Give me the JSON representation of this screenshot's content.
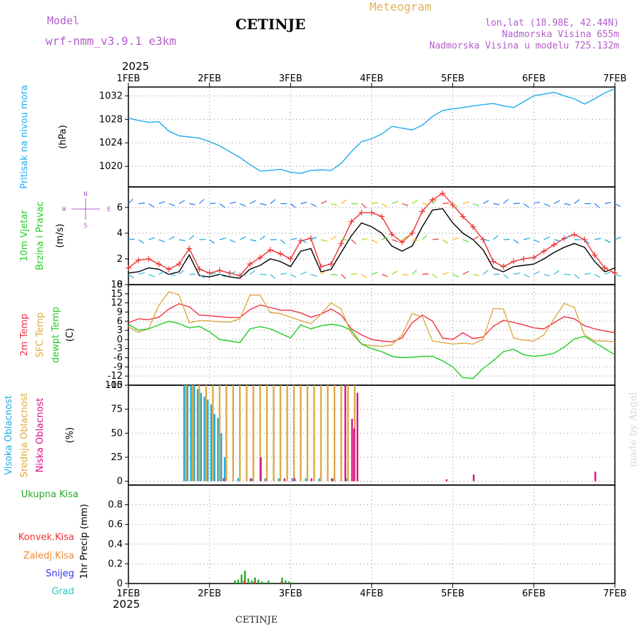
{
  "header": {
    "model_label": "Model",
    "model_name": "wrf-nmm_v3.9.1 e3km",
    "station": "CETINJE",
    "product": "Meteogram",
    "lonlat": "lon,lat (18.98E, 42.44N)",
    "altitude": "Nadmorska Visina 655m",
    "model_altitude": "Nadmorska Visina u modelu 725.132m",
    "footer_station": "CETINJE",
    "credit": "made by Angel",
    "year_top": "2025",
    "year_bottom": "2025"
  },
  "colors": {
    "pressure": "#22aaee",
    "wind_speed": "#000000",
    "gust": "#ee3333",
    "temp2m": "#ee3344",
    "sfc_temp": "#ddaa44",
    "dewpt": "#22cc22",
    "cloud_high": "#22aadd",
    "cloud_mid": "#ddaa44",
    "cloud_low": "#dd1188",
    "precip_total": "#22aa22",
    "precip_conv": "#ee3333",
    "precip_frozen": "#ee8833",
    "snow": "#3333ee",
    "graupel": "#22ccbb",
    "grid": "#888888"
  },
  "chart_data": {
    "type": "meteogram",
    "x_labels": [
      "1FEB",
      "2FEB",
      "3FEB",
      "4FEB",
      "5FEB",
      "6FEB",
      "7FEB"
    ],
    "x_range_hours": [
      0,
      144
    ],
    "panels": [
      {
        "id": "pressure",
        "type": "line",
        "ylabels": [
          "Pritisak na nivou mora",
          "(hPa)"
        ],
        "ylim": [
          1016.5,
          1033.5
        ],
        "yticks": [
          1020,
          1024,
          1028,
          1032
        ],
        "series": [
          {
            "name": "sea-level pressure",
            "color": "#22aaee",
            "x": [
              0,
              3,
              6,
              9,
              12,
              15,
              18,
              21,
              24,
              27,
              30,
              33,
              36,
              39,
              42,
              45,
              48,
              51,
              54,
              57,
              60,
              63,
              66,
              69,
              72,
              75,
              78,
              81,
              84,
              87,
              90,
              93,
              96,
              99,
              102,
              105,
              108,
              111,
              114,
              117,
              120,
              123,
              126,
              129,
              132,
              135,
              138,
              141,
              144
            ],
            "y": [
              1028.2,
              1027.8,
              1027.5,
              1027.6,
              1026,
              1025.2,
              1025,
              1024.8,
              1024.2,
              1023.5,
              1022.5,
              1021.5,
              1020.3,
              1019.2,
              1019.3,
              1019.5,
              1019,
              1018.8,
              1019.3,
              1019.4,
              1019.3,
              1020.5,
              1022.5,
              1024.2,
              1024.7,
              1025.5,
              1026.8,
              1026.5,
              1026.2,
              1027,
              1028.5,
              1029.5,
              1029.8,
              1030,
              1030.3,
              1030.5,
              1030.7,
              1030.3,
              1030,
              1031,
              1032,
              1032.3,
              1032.6,
              1032,
              1031.5,
              1030.6,
              1031.5,
              1032.5,
              1033.2
            ]
          }
        ]
      },
      {
        "id": "wind",
        "type": "line+barbs",
        "ylabels": [
          "10m Vjetar",
          "Brzina i Pravac",
          "(m/s)"
        ],
        "ylim": [
          0,
          7.6
        ],
        "yticks": [
          0,
          2,
          4,
          6
        ],
        "compass": {
          "north": "N",
          "south": "S",
          "west": "W",
          "east": "E"
        },
        "series": [
          {
            "name": "10m wind speed",
            "color": "#000000",
            "x": [
              0,
              3,
              6,
              9,
              12,
              15,
              18,
              21,
              24,
              27,
              30,
              33,
              36,
              39,
              42,
              45,
              48,
              51,
              54,
              57,
              60,
              63,
              66,
              69,
              72,
              75,
              78,
              81,
              84,
              87,
              90,
              93,
              96,
              99,
              102,
              105,
              108,
              111,
              114,
              117,
              120,
              123,
              126,
              129,
              132,
              135,
              138,
              141,
              144
            ],
            "y": [
              0.9,
              1.0,
              1.3,
              1.2,
              0.8,
              1.0,
              2.3,
              0.7,
              0.6,
              0.8,
              0.6,
              0.5,
              1.2,
              1.5,
              2.0,
              1.8,
              1.4,
              2.6,
              2.8,
              1.0,
              1.2,
              2.5,
              3.8,
              4.8,
              4.5,
              4.0,
              3.0,
              2.6,
              3.0,
              4.5,
              5.8,
              5.9,
              4.8,
              4.0,
              3.5,
              2.7,
              1.3,
              1.0,
              1.4,
              1.5,
              1.6,
              2.0,
              2.5,
              2.9,
              3.2,
              2.9,
              1.8,
              1.0,
              1.3
            ]
          },
          {
            "name": "gust",
            "color": "#ee3333",
            "x": [
              0,
              3,
              6,
              9,
              12,
              15,
              18,
              21,
              24,
              27,
              30,
              33,
              36,
              39,
              42,
              45,
              48,
              51,
              54,
              57,
              60,
              63,
              66,
              69,
              72,
              75,
              78,
              81,
              84,
              87,
              90,
              93,
              96,
              99,
              102,
              105,
              108,
              111,
              114,
              117,
              120,
              123,
              126,
              129,
              132,
              135,
              138,
              141,
              144
            ],
            "y": [
              1.3,
              1.9,
              2.0,
              1.6,
              1.2,
              1.6,
              2.8,
              1.2,
              0.9,
              1.1,
              0.9,
              0.7,
              1.6,
              2.1,
              2.7,
              2.4,
              2.0,
              3.4,
              3.6,
              1.4,
              1.6,
              3.2,
              4.9,
              5.6,
              5.6,
              5.3,
              3.9,
              3.3,
              4.0,
              5.7,
              6.6,
              7.1,
              6.2,
              5.3,
              4.5,
              3.5,
              1.8,
              1.4,
              1.8,
              2.0,
              2.1,
              2.6,
              3.1,
              3.6,
              3.9,
              3.5,
              2.3,
              1.3,
              0.9
            ]
          }
        ]
      },
      {
        "id": "temperature",
        "type": "line",
        "ylabels": [
          "2m Temp",
          "SFC Temp",
          "dewpt Temp",
          "(C)"
        ],
        "ylim": [
          -15,
          18
        ],
        "yticks": [
          -15,
          -12,
          -9,
          -6,
          -3,
          0,
          3,
          6,
          9,
          12,
          15,
          18
        ],
        "series": [
          {
            "name": "2m temperature",
            "color": "#ee3344",
            "x": [
              0,
              3,
              6,
              9,
              12,
              15,
              18,
              21,
              24,
              27,
              30,
              33,
              36,
              39,
              42,
              45,
              48,
              51,
              54,
              57,
              60,
              63,
              66,
              69,
              72,
              75,
              78,
              81,
              84,
              87,
              90,
              93,
              96,
              99,
              102,
              105,
              108,
              111,
              114,
              117,
              120,
              123,
              126,
              129,
              132,
              135,
              138,
              141,
              144
            ],
            "y": [
              5.5,
              6.8,
              6.5,
              7.3,
              10,
              11.7,
              10.7,
              8,
              7.8,
              7.5,
              7.2,
              7.2,
              9.8,
              11.3,
              10.5,
              9.6,
              9.6,
              8.7,
              7.3,
              8.3,
              10,
              8,
              3.5,
              1.5,
              0,
              -0.5,
              -0.8,
              0.5,
              5.5,
              8,
              6,
              0.5,
              0,
              2.2,
              0.3,
              0.8,
              4.3,
              6.3,
              5.6,
              4.8,
              3.8,
              3.5,
              5.5,
              7.5,
              6.8,
              4.5,
              3.5,
              2.8,
              2.2
            ]
          },
          {
            "name": "surface temperature",
            "color": "#ddaa44",
            "x": [
              0,
              3,
              6,
              9,
              12,
              15,
              18,
              21,
              24,
              27,
              30,
              33,
              36,
              39,
              42,
              45,
              48,
              51,
              54,
              57,
              60,
              63,
              66,
              69,
              72,
              75,
              78,
              81,
              84,
              87,
              90,
              93,
              96,
              99,
              102,
              105,
              108,
              111,
              114,
              117,
              120,
              123,
              126,
              129,
              132,
              135,
              138,
              141,
              144
            ],
            "y": [
              4.2,
              2.3,
              3.6,
              11.2,
              15.7,
              14.6,
              5.5,
              6.2,
              6.1,
              5.8,
              5.7,
              6.8,
              14.6,
              14.5,
              8.8,
              8.5,
              7.3,
              6.2,
              5.2,
              8.3,
              12,
              10,
              2,
              -1.5,
              -2,
              -2.2,
              -1.8,
              1.5,
              8.5,
              7.5,
              -0.5,
              -1,
              -1.5,
              -1.2,
              -1.5,
              0,
              10.2,
              10,
              0.5,
              -0.2,
              -0.5,
              1.5,
              6.8,
              11.8,
              10.5,
              1.5,
              -0.5,
              -0.5,
              -0.8
            ]
          },
          {
            "name": "dew point",
            "color": "#22cc22",
            "x": [
              0,
              3,
              6,
              9,
              12,
              15,
              18,
              21,
              24,
              27,
              30,
              33,
              36,
              39,
              42,
              45,
              48,
              51,
              54,
              57,
              60,
              63,
              66,
              69,
              72,
              75,
              78,
              81,
              84,
              87,
              90,
              93,
              96,
              99,
              102,
              105,
              108,
              111,
              114,
              117,
              120,
              123,
              126,
              129,
              132,
              135,
              138,
              141,
              144
            ],
            "y": [
              5,
              3,
              3.5,
              4.8,
              6,
              5.2,
              3.8,
              4.3,
              2.5,
              0,
              -0.5,
              -1,
              3.5,
              4.2,
              3.5,
              2,
              0.5,
              4.8,
              3.5,
              4.5,
              5,
              4.5,
              3,
              -1.5,
              -3,
              -4,
              -5.5,
              -6,
              -5.8,
              -5.5,
              -5.5,
              -7,
              -9,
              -12.5,
              -12.8,
              -9.5,
              -7,
              -4,
              -3.2,
              -5,
              -5.5,
              -5.2,
              -4.5,
              -2.5,
              0.2,
              1,
              -1,
              -3,
              -5
            ]
          }
        ]
      },
      {
        "id": "cloud",
        "type": "bar",
        "ylabels": [
          "Visoka Oblacnost",
          "Srednja Oblacnost",
          "Niska Oblacnost",
          "(%)"
        ],
        "ylim": [
          -4,
          100
        ],
        "yticks": [
          0,
          25,
          50,
          75,
          100
        ],
        "series": [
          {
            "name": "high cloud",
            "color": "#22aadd",
            "x": [
              16.5,
              17.5,
              18.5,
              19.5,
              20.5,
              21.5,
              22.5,
              23.5,
              24.5,
              25.5,
              26.5,
              27.5,
              28.5,
              32.5,
              36.5,
              40.5,
              44.5,
              48.5,
              52.5,
              56.5,
              60.5,
              64.5
            ],
            "values": [
              100,
              100,
              100,
              100,
              96,
              92,
              88,
              85,
              80,
              70,
              66,
              50,
              25,
              3,
              3,
              3,
              3,
              3,
              3,
              3,
              3,
              3
            ]
          },
          {
            "name": "mid cloud",
            "color": "#ddaa44",
            "x": [
              17,
              19,
              21,
              23,
              25,
              27,
              29,
              31,
              33,
              35,
              37,
              39,
              41,
              43,
              45,
              47,
              49,
              51,
              53,
              55,
              57,
              59,
              61,
              63,
              65,
              67
            ],
            "values": [
              100,
              100,
              100,
              100,
              100,
              100,
              100,
              100,
              100,
              100,
              100,
              100,
              100,
              100,
              100,
              100,
              100,
              100,
              100,
              100,
              100,
              100,
              100,
              100,
              100,
              100
            ]
          },
          {
            "name": "low cloud",
            "color": "#dd1188",
            "x": [
              28.2,
              36.2,
              39.2,
              46.2,
              49.2,
              54.2,
              60.2,
              64.2,
              66.2,
              66.8,
              67.8,
              94.2,
              102.2,
              138.2
            ],
            "values": [
              3,
              3,
              25,
              3,
              3,
              3,
              3,
              100,
              65,
              55,
              92,
              2,
              7,
              10
            ]
          }
        ]
      },
      {
        "id": "precip",
        "type": "bar",
        "ylabels": [
          "Ukupna Kisa",
          "Konvek.Kisa",
          "Zaledj.Kisa",
          "Snijeg",
          "Grad",
          "1hr Precip (mm)"
        ],
        "ylim": [
          0,
          1.0
        ],
        "yticks": [
          0,
          0.2,
          0.4,
          0.6,
          0.8
        ],
        "series": [
          {
            "name": "total rain",
            "color": "#22aa22",
            "x": [
              31.5,
              32.5,
              33.5,
              34.5,
              35.5,
              36.5,
              37.5,
              38.5,
              39.5,
              40.5,
              41.5,
              42.5,
              45.5,
              46.5,
              47.5,
              48.5
            ],
            "values": [
              0.03,
              0.04,
              0.09,
              0.13,
              0.05,
              0.03,
              0.06,
              0.04,
              0.02,
              0.01,
              0.03,
              0.01,
              0.06,
              0.03,
              0.02,
              0.01
            ]
          },
          {
            "name": "convective rain",
            "color": "#ee3333",
            "x": [
              34.3,
              37.3,
              45.3
            ],
            "values": [
              0.03,
              0.02,
              0.02
            ]
          }
        ]
      }
    ]
  }
}
